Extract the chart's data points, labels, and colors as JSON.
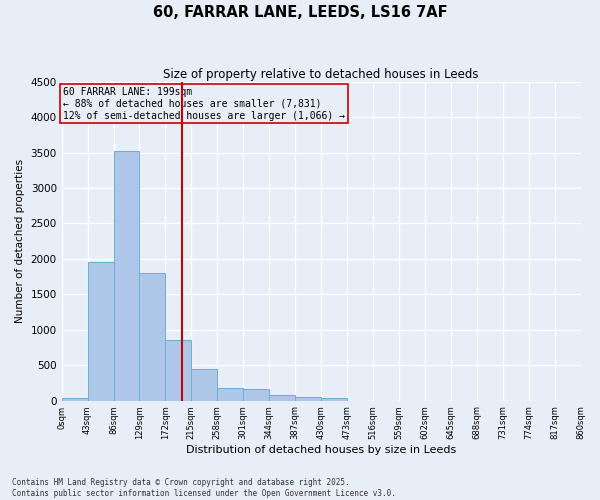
{
  "title1": "60, FARRAR LANE, LEEDS, LS16 7AF",
  "title2": "Size of property relative to detached houses in Leeds",
  "xlabel": "Distribution of detached houses by size in Leeds",
  "ylabel": "Number of detached properties",
  "bar_edges": [
    0,
    43,
    86,
    129,
    172,
    215,
    258,
    301,
    344,
    387,
    430,
    473,
    516,
    559,
    602,
    645,
    688,
    731,
    774,
    817,
    860
  ],
  "bar_heights": [
    30,
    1950,
    3520,
    1800,
    850,
    450,
    175,
    160,
    85,
    50,
    30,
    0,
    0,
    0,
    0,
    0,
    0,
    0,
    0,
    0
  ],
  "bar_color": "#aec6e8",
  "bar_edge_color": "#6aaed6",
  "vline_x": 199,
  "vline_color": "#cc0000",
  "annotation_text": "60 FARRAR LANE: 199sqm\n← 88% of detached houses are smaller (7,831)\n12% of semi-detached houses are larger (1,066) →",
  "annotation_box_color": "#cc0000",
  "ylim": [
    0,
    4500
  ],
  "yticks": [
    0,
    500,
    1000,
    1500,
    2000,
    2500,
    3000,
    3500,
    4000,
    4500
  ],
  "tick_labels": [
    "0sqm",
    "43sqm",
    "86sqm",
    "129sqm",
    "172sqm",
    "215sqm",
    "258sqm",
    "301sqm",
    "344sqm",
    "387sqm",
    "430sqm",
    "473sqm",
    "516sqm",
    "559sqm",
    "602sqm",
    "645sqm",
    "688sqm",
    "731sqm",
    "774sqm",
    "817sqm",
    "860sqm"
  ],
  "background_color": "#e8eef8",
  "grid_color": "#ffffff",
  "footer1": "Contains HM Land Registry data © Crown copyright and database right 2025.",
  "footer2": "Contains public sector information licensed under the Open Government Licence v3.0."
}
